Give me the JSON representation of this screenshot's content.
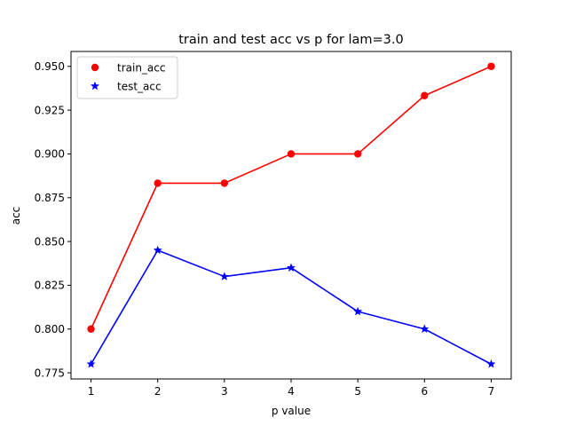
{
  "chart_data": {
    "type": "line",
    "title": "train and test acc vs p for lam=3.0",
    "xlabel": "p value",
    "ylabel": "acc",
    "x": [
      1,
      2,
      3,
      4,
      5,
      6,
      7
    ],
    "xlim": [
      0.7,
      7.3
    ],
    "ylim": [
      0.7715,
      0.9585
    ],
    "xticks": [
      1,
      2,
      3,
      4,
      5,
      6,
      7
    ],
    "xtick_labels": [
      "1",
      "2",
      "3",
      "4",
      "5",
      "6",
      "7"
    ],
    "yticks": [
      0.775,
      0.8,
      0.825,
      0.85,
      0.875,
      0.9,
      0.925,
      0.95
    ],
    "ytick_labels": [
      "0.775",
      "0.800",
      "0.825",
      "0.850",
      "0.875",
      "0.900",
      "0.925",
      "0.950"
    ],
    "grid": false,
    "legend_position": "top-left",
    "series": [
      {
        "name": "train_acc",
        "color": "#ff0000",
        "marker": "circle",
        "values": [
          0.8,
          0.8833,
          0.8833,
          0.9,
          0.9,
          0.9333,
          0.95
        ]
      },
      {
        "name": "test_acc",
        "color": "#0000ff",
        "marker": "star",
        "values": [
          0.78,
          0.845,
          0.83,
          0.835,
          0.81,
          0.8,
          0.78
        ]
      }
    ]
  }
}
